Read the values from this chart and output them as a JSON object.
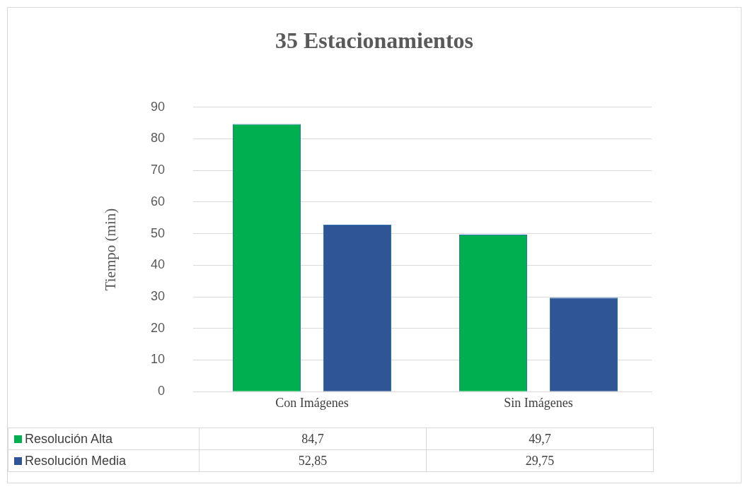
{
  "chart_data": {
    "type": "bar",
    "title": "35 Estacionamientos",
    "ylabel": "Tiempo (min)",
    "categories": [
      "Con Imágenes",
      "Sin Imágenes"
    ],
    "series": [
      {
        "name": "Resolución Alta",
        "color": "#00b050",
        "values": [
          84.7,
          49.7
        ]
      },
      {
        "name": "Resolución Media",
        "color": "#2f5597",
        "values": [
          52.85,
          29.75
        ]
      }
    ],
    "value_labels": [
      [
        "84,7",
        "49,7"
      ],
      [
        "52,85",
        "29,75"
      ]
    ],
    "ylim": [
      0,
      90
    ],
    "yticks": [
      0,
      10,
      20,
      30,
      40,
      50,
      60,
      70,
      80,
      90
    ],
    "grid": "y",
    "legend": "bottom"
  }
}
